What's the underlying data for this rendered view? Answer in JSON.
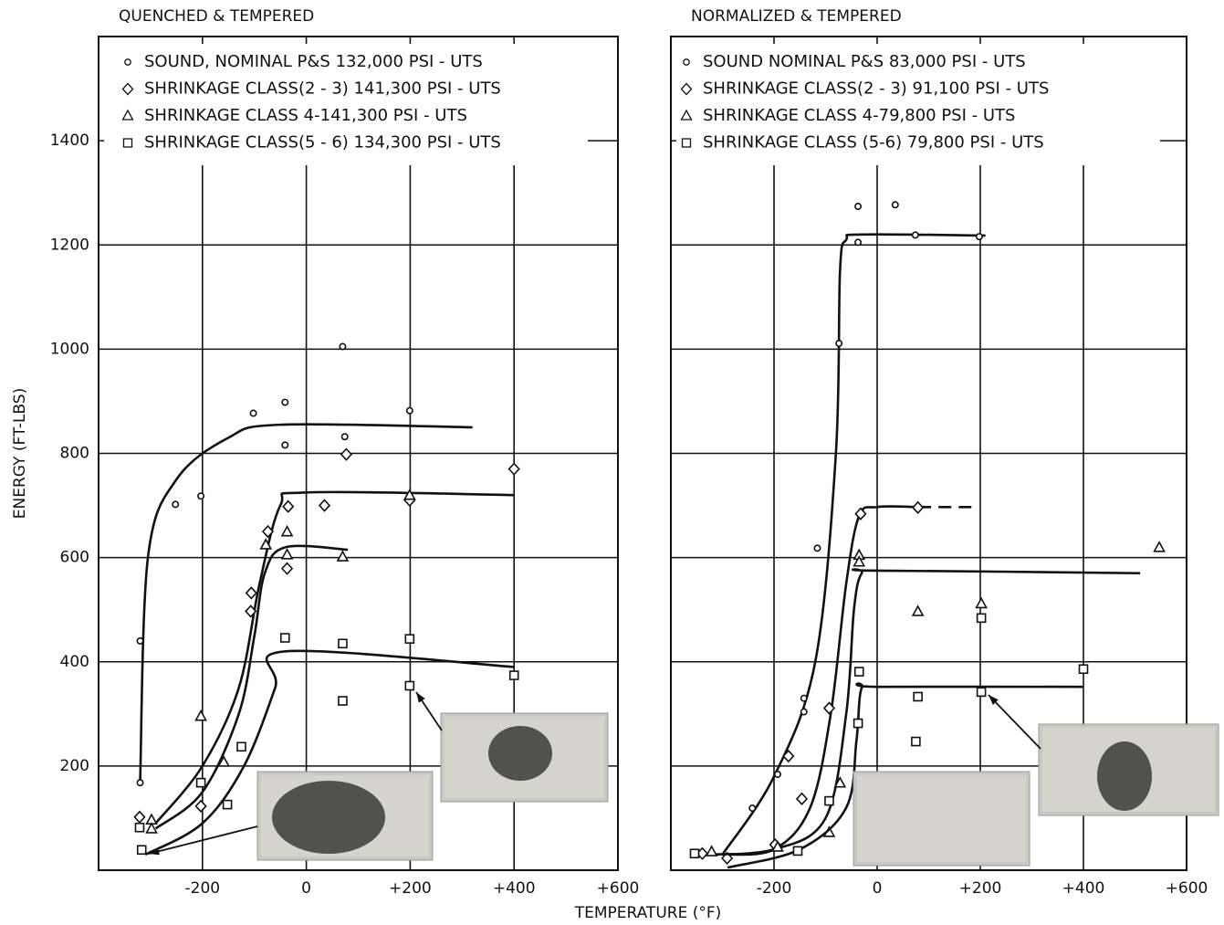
{
  "chart_data": [
    {
      "type": "scatter",
      "title": "QUENCHED & TEMPERED",
      "ylabel": "ENERGY (FT-LBS)",
      "xlabel": "TEMPERATURE (°F)",
      "xlim": [
        -400,
        600
      ],
      "ylim": [
        0,
        1600
      ],
      "xticks": [
        {
          "value": -200,
          "label": "-200"
        },
        0,
        {
          "value": 200,
          "label": "+200"
        },
        {
          "value": 400,
          "label": "+400"
        },
        {
          "value": 600,
          "label": "+600"
        }
      ],
      "yticks": [
        200,
        400,
        600,
        800,
        1000,
        1200,
        1400
      ],
      "grid": true,
      "series": [
        {
          "name": "SOUND, NOMINAL P&S 132,000 PSI - UTS",
          "marker": "circle",
          "color": "#111",
          "x": [
            -320,
            -320,
            -252,
            -203,
            -102,
            -41,
            -41,
            70,
            74,
            199
          ],
          "y": [
            440,
            168,
            702,
            718,
            877,
            898,
            816,
            1005,
            832,
            882
          ],
          "fit": {
            "x": [
              -320,
              -305,
              -250,
              -150,
              -50,
              320
            ],
            "y": [
              170,
              600,
              750,
              830,
              855,
              850
            ]
          }
        },
        {
          "name": "SHRINKAGE CLASS(2 - 3) 141,300 PSI - UTS",
          "marker": "diamond",
          "color": "#111",
          "x": [
            -321,
            -203,
            -107,
            -106,
            -74,
            -35,
            -37,
            35,
            77,
            199,
            400
          ],
          "y": [
            102,
            123,
            497,
            532,
            650,
            698,
            579,
            700,
            798,
            710,
            770
          ],
          "fit": {
            "x": [
              -290,
              -200,
              -130,
              -90,
              -50,
              0,
              400
            ],
            "y": [
              90,
              200,
              350,
              550,
              700,
              725,
              720
            ]
          }
        },
        {
          "name": "SHRINKAGE CLASS 4-141,300 PSI - UTS",
          "marker": "triangle",
          "color": "#111",
          "x": [
            -298,
            -298,
            -203,
            -159,
            -78,
            -37,
            -37,
            70,
            199
          ],
          "y": [
            96,
            79,
            295,
            207,
            624,
            649,
            605,
            601,
            719
          ],
          "fit": {
            "x": [
              -290,
              -200,
              -130,
              -100,
              -80,
              -40,
              80
            ],
            "y": [
              80,
              150,
              300,
              450,
              570,
              620,
              615
            ]
          }
        },
        {
          "name": "SHRINKAGE CLASS(5 - 6) 134,300 PSI - UTS",
          "marker": "square",
          "color": "#111",
          "x": [
            -321,
            -317,
            -203,
            -152,
            -125,
            -41,
            70,
            70,
            199,
            199,
            400
          ],
          "y": [
            82,
            39,
            168,
            126,
            237,
            446,
            435,
            325,
            444,
            354,
            374
          ],
          "fit": {
            "x": [
              -310,
              -200,
              -120,
              -60,
              -40,
              400
            ],
            "y": [
              30,
              90,
              200,
              350,
              420,
              390
            ]
          }
        }
      ]
    },
    {
      "type": "scatter",
      "title": "NORMALIZED & TEMPERED",
      "xlim": [
        -400,
        600
      ],
      "ylim": [
        0,
        1600
      ],
      "xticks": [
        {
          "value": -200,
          "label": "-200"
        },
        0,
        {
          "value": 200,
          "label": "+200"
        },
        {
          "value": 400,
          "label": "+400"
        },
        {
          "value": 600,
          "label": "+600"
        }
      ],
      "yticks": [
        200,
        400,
        600,
        800,
        1000,
        1200,
        1400
      ],
      "grid": true,
      "series": [
        {
          "name": "SOUND NOMINAL P&S 83,000 PSI - UTS",
          "marker": "circle",
          "color": "#111",
          "x": [
            -242,
            -193,
            -142,
            -142,
            -116,
            -74,
            -37,
            -37,
            35,
            74,
            198
          ],
          "y": [
            119,
            184,
            330,
            304,
            618,
            1011,
            1274,
            1205,
            1277,
            1219,
            1216
          ],
          "fit": {
            "x": [
              -300,
              -200,
              -120,
              -80,
              -72,
              -60,
              -30,
              210
            ],
            "y": [
              30,
              180,
              400,
              800,
              1150,
              1210,
              1220,
              1218
            ]
          }
        },
        {
          "name": "SHRINKAGE CLASS(2 - 3) 91,100 PSI - UTS",
          "marker": "diamond",
          "color": "#111",
          "x": [
            -339,
            -291,
            -198,
            -172,
            -146,
            -93,
            -32,
            79
          ],
          "y": [
            32,
            23,
            49,
            219,
            137,
            311,
            684,
            696
          ],
          "fit": {
            "x": [
              -300,
              -200,
              -130,
              -90,
              -60,
              -35,
              0,
              80
            ],
            "y": [
              30,
              40,
              120,
              300,
              550,
              680,
              697,
              697
            ]
          },
          "fit_dashed": {
            "x": [
              80,
              190
            ],
            "y": [
              697,
              697
            ]
          }
        },
        {
          "name": "SHRINKAGE CLASS 4-79,800 PSI - UTS",
          "marker": "triangle",
          "color": "#111",
          "x": [
            -321,
            -193,
            -93,
            -72,
            -35,
            -35,
            79,
            202,
            547
          ],
          "y": [
            35,
            44,
            72,
            167,
            604,
            591,
            496,
            511,
            619
          ],
          "fit": {
            "x": [
              -330,
              -200,
              -100,
              -60,
              -45,
              -30,
              0,
              510
            ],
            "y": [
              30,
              40,
              100,
              300,
              500,
              570,
              575,
              570
            ]
          }
        },
        {
          "name": "SHRINKAGE CLASS (5-6) 79,800 PSI - UTS",
          "marker": "square",
          "color": "#111",
          "x": [
            -354,
            -154,
            -93,
            -37,
            -35,
            79,
            75,
            202,
            202,
            400
          ],
          "y": [
            32,
            37,
            133,
            282,
            381,
            333,
            247,
            342,
            484,
            386
          ],
          "fit": {
            "x": [
              -290,
              -150,
              -60,
              -40,
              -30,
              0,
              400
            ],
            "y": [
              5,
              40,
              120,
              250,
              350,
              352,
              352
            ]
          }
        }
      ]
    }
  ]
}
